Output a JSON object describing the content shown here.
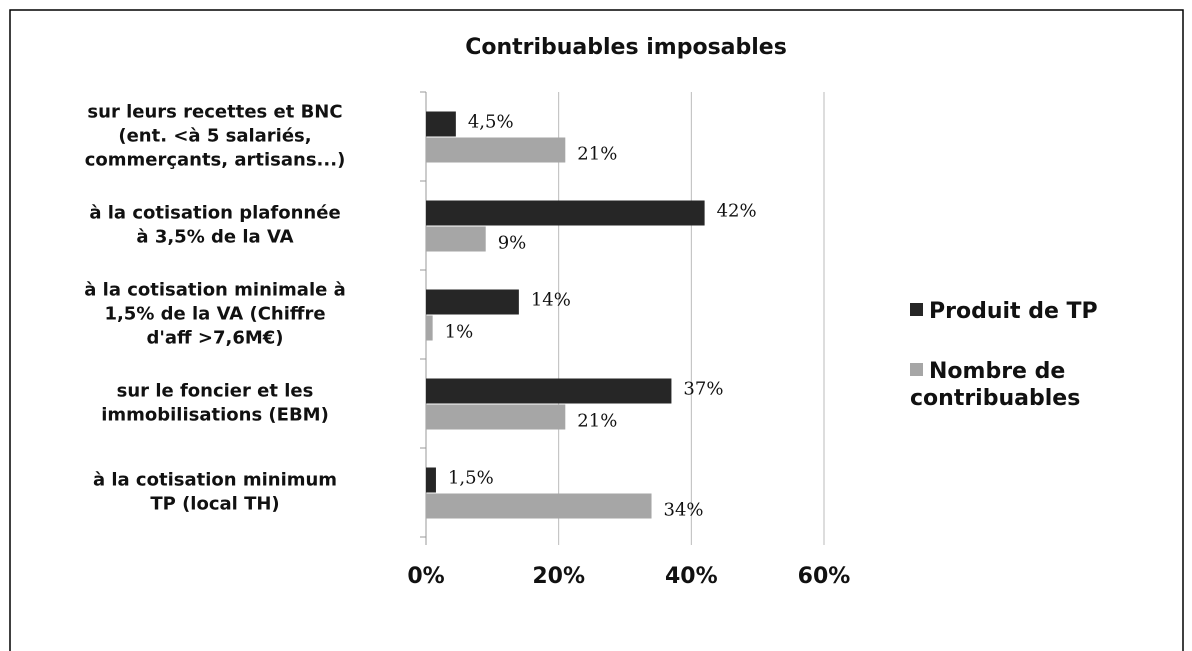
{
  "chart_data": {
    "type": "bar",
    "orientation": "horizontal",
    "title": "Contribuables imposables",
    "categories": [
      [
        "sur leurs recettes et BNC",
        "(ent. <à 5 salariés,",
        "commerçants, artisans...)"
      ],
      [
        "à la cotisation plafonnée",
        "à 3,5% de la VA"
      ],
      [
        "à la cotisation minimale à",
        "1,5% de la VA (Chiffre",
        "d'aff >7,6M€)"
      ],
      [
        "sur le foncier et les",
        "immobilisations (EBM)"
      ],
      [
        "à la cotisation minimum",
        "TP (local TH)"
      ]
    ],
    "series": [
      {
        "name": "Produit de TP",
        "color": "#262626",
        "values": [
          4.5,
          42,
          14,
          37,
          1.5
        ],
        "value_labels": [
          "4,5%",
          "42%",
          "14%",
          "37%",
          "1,5%"
        ]
      },
      {
        "name": "Nombre de contribuables",
        "color": "#a6a6a6",
        "values": [
          21,
          9,
          1,
          21,
          34
        ],
        "value_labels": [
          "21%",
          "9%",
          "1%",
          "21%",
          "34%"
        ]
      }
    ],
    "xlim": [
      0,
      60
    ],
    "xticks": [
      {
        "value": 0,
        "label": "0%"
      },
      {
        "value": 20,
        "label": "20%"
      },
      {
        "value": 40,
        "label": "40%"
      },
      {
        "value": 60,
        "label": "60%"
      }
    ],
    "grid": true,
    "legend": "right"
  }
}
